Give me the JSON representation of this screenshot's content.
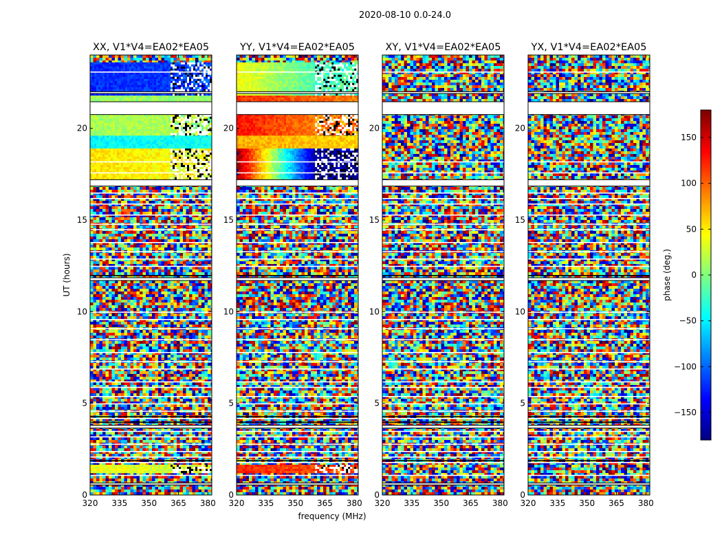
{
  "figure_title": "2020-08-10 0.0-24.0",
  "chart_data": [
    {
      "type": "heatmap",
      "title": "XX, V1*V4=EA02*EA05",
      "x_range": [
        320,
        382
      ],
      "y_range": [
        0,
        24
      ],
      "x_ticks": [
        320,
        335,
        350,
        365,
        380
      ],
      "y_ticks": [
        0,
        5,
        10,
        15,
        20
      ],
      "ylabel": "UT (hours)",
      "xlabel": "",
      "coherent_segments": [
        {
          "t0": 21.45,
          "t1": 21.9,
          "freq_edge": 384,
          "phase_left": 10,
          "phase_right": 10
        },
        {
          "t0": 21.9,
          "t1": 23.6,
          "freq_edge": 361,
          "phase_left": -120,
          "phase_right": -115
        },
        {
          "t0": 19.6,
          "t1": 20.75,
          "freq_edge": 361,
          "phase_left": 15,
          "phase_right": 15
        },
        {
          "t0": 18.9,
          "t1": 19.6,
          "freq_edge": 384,
          "phase_left": -45,
          "phase_right": -40
        },
        {
          "t0": 17.2,
          "t1": 18.9,
          "freq_edge": 361,
          "phase_left": 55,
          "phase_right": 45
        },
        {
          "t0": 1.3,
          "t1": 1.65,
          "freq_edge": 361,
          "phase_left": 40,
          "phase_right": 30
        }
      ]
    },
    {
      "type": "heatmap",
      "title": "YY, V1*V4=EA02*EA05",
      "x_range": [
        320,
        382
      ],
      "y_range": [
        0,
        24
      ],
      "x_ticks": [
        320,
        335,
        350,
        365,
        380
      ],
      "y_ticks": [
        0,
        5,
        10,
        15,
        20
      ],
      "ylabel": "",
      "xlabel": "frequency (MHz)",
      "coherent_segments": [
        {
          "t0": 21.45,
          "t1": 21.9,
          "freq_edge": 384,
          "phase_left": 120,
          "phase_right": 90
        },
        {
          "t0": 21.9,
          "t1": 23.6,
          "freq_edge": 360,
          "phase_left": 45,
          "phase_right": -20
        },
        {
          "t0": 19.6,
          "t1": 20.75,
          "freq_edge": 360,
          "phase_left": 130,
          "phase_right": 90
        },
        {
          "t0": 18.9,
          "t1": 19.6,
          "freq_edge": 384,
          "phase_left": 75,
          "phase_right": 60
        },
        {
          "t0": 17.2,
          "t1": 18.9,
          "freq_edge": 360,
          "phase_left": 170,
          "phase_right": -170
        },
        {
          "t0": 1.3,
          "t1": 1.65,
          "freq_edge": 360,
          "phase_left": 125,
          "phase_right": 110
        }
      ]
    },
    {
      "type": "heatmap",
      "title": "XY, V1*V4=EA02*EA05",
      "x_range": [
        320,
        382
      ],
      "y_range": [
        0,
        24
      ],
      "x_ticks": [
        320,
        335,
        350,
        365,
        380
      ],
      "y_ticks": [
        0,
        5,
        10,
        15,
        20
      ],
      "ylabel": "",
      "xlabel": "",
      "coherent_segments": []
    },
    {
      "type": "heatmap",
      "title": "YX, V1*V4=EA02*EA05",
      "x_range": [
        320,
        382
      ],
      "y_range": [
        0,
        24
      ],
      "x_ticks": [
        320,
        335,
        350,
        365,
        380
      ],
      "y_ticks": [
        0,
        5,
        10,
        15,
        20
      ],
      "ylabel": "",
      "xlabel": "",
      "coherent_segments": []
    }
  ],
  "shared": {
    "blank_bands": [
      [
        21.9,
        22.0
      ],
      [
        20.75,
        21.45
      ],
      [
        16.85,
        17.2
      ],
      [
        11.7,
        11.85
      ],
      [
        0.55,
        0.65
      ],
      [
        3.65,
        3.8
      ]
    ],
    "white_lines": [
      23.1,
      18.2,
      17.6,
      16.5,
      16.2,
      15.9,
      15.3,
      14.8,
      14.5,
      13.8,
      13.3,
      12.9,
      12.5,
      10.0,
      9.6,
      9.1,
      8.5,
      7.8,
      7.3,
      6.9,
      6.2,
      5.9,
      5.4,
      5.0,
      4.6,
      4.2,
      3.5,
      3.2,
      2.8,
      2.4,
      2.1,
      1.8,
      1.1
    ],
    "black_lines": [
      12.0,
      4.3,
      4.0,
      1.9
    ]
  },
  "colorbar": {
    "label": "phase (deg.)",
    "range": [
      -180,
      180
    ],
    "ticks": [
      150,
      100,
      50,
      0,
      -50,
      -100,
      -150
    ],
    "tick_labels": [
      "150",
      "100",
      "50",
      "0",
      "−50",
      "−100",
      "−150"
    ],
    "colormap": "jet"
  }
}
